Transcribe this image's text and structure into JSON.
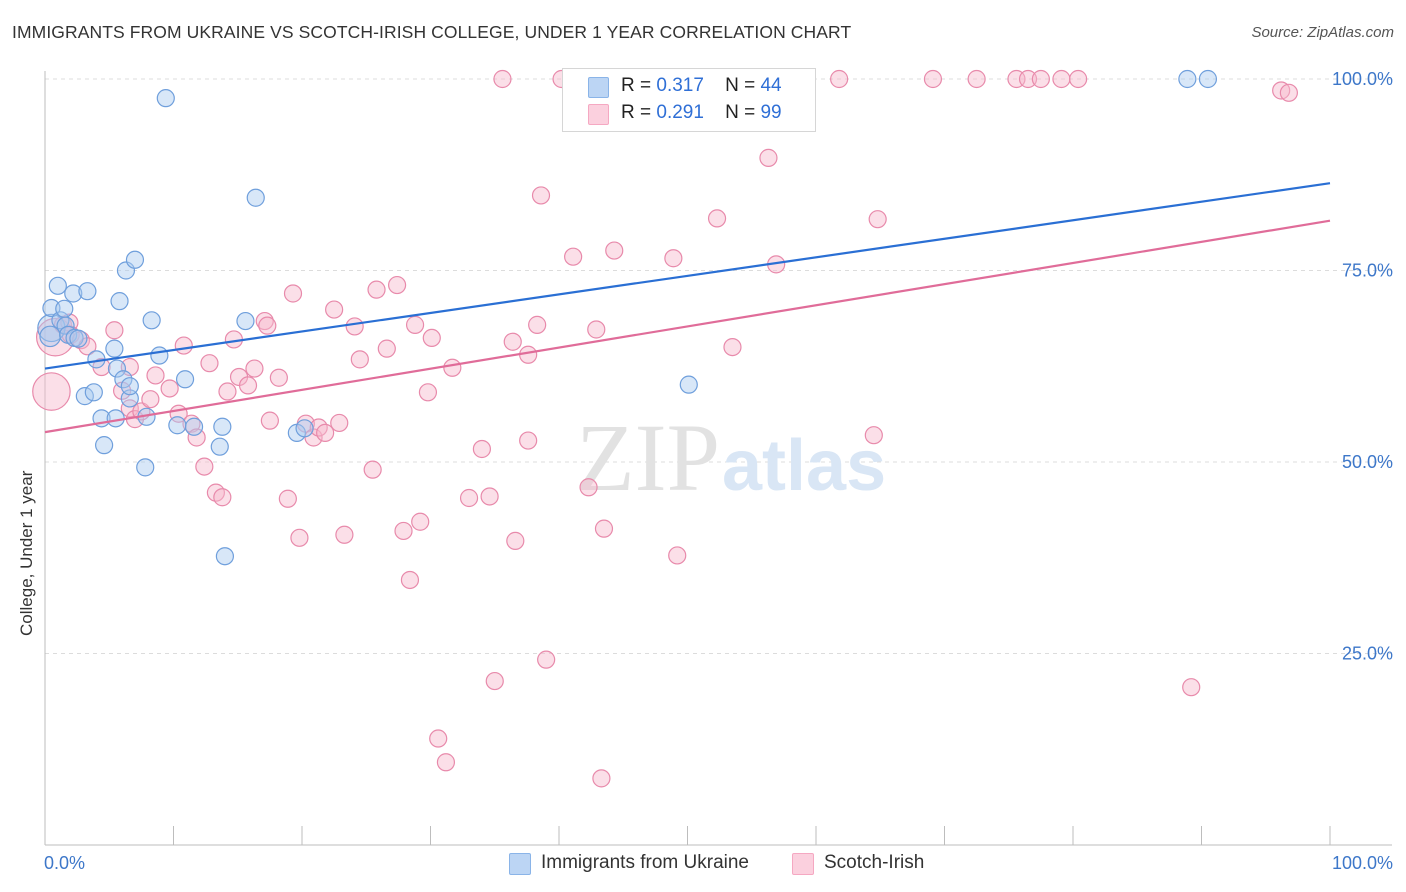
{
  "title": "IMMIGRANTS FROM UKRAINE VS SCOTCH-IRISH COLLEGE, UNDER 1 YEAR CORRELATION CHART",
  "source": "Source: ZipAtlas.com",
  "watermark": {
    "zip": "ZIP",
    "atlas": "atlas"
  },
  "legend_stats": [
    {
      "r_label": "R =",
      "r_value": "0.317",
      "n_label": "N =",
      "n_value": "44"
    },
    {
      "r_label": "R =",
      "r_value": "0.291",
      "n_label": "N =",
      "n_value": "99"
    }
  ],
  "chart_data": {
    "type": "scatter",
    "title": "IMMIGRANTS FROM UKRAINE VS SCOTCH-IRISH COLLEGE, UNDER 1 YEAR CORRELATION CHART",
    "xlabel": "",
    "ylabel": "College, Under 1 year",
    "xlim": [
      0,
      100
    ],
    "ylim": [
      0,
      102
    ],
    "x_tick_labels": [
      "0.0%",
      "100.0%"
    ],
    "y_ticks": [
      25,
      50,
      75,
      100
    ],
    "y_tick_labels": [
      "25.0%",
      "50.0%",
      "75.0%",
      "100.0%"
    ],
    "grid": true,
    "legend_position": "bottom",
    "series": [
      {
        "name": "Immigrants from Ukraine",
        "color": "#8ab4e8",
        "line_color": "#2a6fd4",
        "r": 0.317,
        "n": 44,
        "trend": {
          "x0": 0,
          "y0": 62.2,
          "x1": 100,
          "y1": 86.4
        },
        "points": [
          [
            0.5,
            67.5,
            1.6
          ],
          [
            0.4,
            66.4,
            1.2
          ],
          [
            0.5,
            70.1,
            1
          ],
          [
            1,
            73,
            1
          ],
          [
            1.2,
            68.5,
            1
          ],
          [
            1.5,
            70,
            1
          ],
          [
            1.6,
            67.8,
            1
          ],
          [
            1.8,
            66.6,
            1
          ],
          [
            2.2,
            72,
            1
          ],
          [
            2.3,
            66.2,
            1
          ],
          [
            2.6,
            66.1,
            1
          ],
          [
            3.3,
            72.3,
            1
          ],
          [
            3.1,
            58.6,
            1
          ],
          [
            3.8,
            59.1,
            1
          ],
          [
            4,
            63.4,
            1
          ],
          [
            4.4,
            55.7,
            1
          ],
          [
            4.6,
            52.2,
            1
          ],
          [
            5.5,
            55.7,
            1
          ],
          [
            5.4,
            64.8,
            1
          ],
          [
            5.6,
            62.2,
            1
          ],
          [
            5.8,
            71,
            1
          ],
          [
            6.1,
            60.8,
            1
          ],
          [
            6.3,
            75,
            1
          ],
          [
            6.6,
            58.3,
            1
          ],
          [
            6.6,
            59.9,
            1
          ],
          [
            7,
            76.4,
            1
          ],
          [
            7.8,
            49.3,
            1
          ],
          [
            7.9,
            55.9,
            1
          ],
          [
            8.3,
            68.5,
            1
          ],
          [
            8.9,
            63.9,
            1
          ],
          [
            9.4,
            97.5,
            1
          ],
          [
            10.3,
            54.8,
            1
          ],
          [
            10.9,
            60.8,
            1
          ],
          [
            11.6,
            54.6,
            1
          ],
          [
            13.6,
            52,
            1
          ],
          [
            13.8,
            54.6,
            1
          ],
          [
            14,
            37.7,
            1
          ],
          [
            15.6,
            68.4,
            1
          ],
          [
            16.4,
            84.5,
            1
          ],
          [
            19.6,
            53.8,
            1
          ],
          [
            20.2,
            54.4,
            1
          ],
          [
            50.1,
            60.1,
            1
          ],
          [
            88.9,
            100,
            1
          ],
          [
            90.5,
            100,
            1
          ]
        ]
      },
      {
        "name": "Scotch-Irish",
        "color": "#f5a8c2",
        "line_color": "#e06c99",
        "r": 0.291,
        "n": 99,
        "trend": {
          "x0": 0,
          "y0": 53.9,
          "x1": 100,
          "y1": 81.5
        },
        "points": [
          [
            0.5,
            59.2,
            2.2
          ],
          [
            0.8,
            66.3,
            2.2
          ],
          [
            1.4,
            67.9,
            1
          ],
          [
            1.9,
            68.2,
            1
          ],
          [
            2,
            66.6,
            1
          ],
          [
            2.8,
            65.9,
            1
          ],
          [
            3.3,
            65.1,
            1
          ],
          [
            4.4,
            62.4,
            1
          ],
          [
            5.4,
            67.2,
            1
          ],
          [
            6,
            59.3,
            1
          ],
          [
            6.6,
            62.4,
            1
          ],
          [
            6.6,
            57,
            1
          ],
          [
            7,
            55.6,
            1
          ],
          [
            7.5,
            56.6,
            1
          ],
          [
            8.2,
            58.2,
            1
          ],
          [
            8.6,
            61.3,
            1
          ],
          [
            9.7,
            59.6,
            1
          ],
          [
            10.4,
            56.3,
            1
          ],
          [
            10.8,
            65.2,
            1
          ],
          [
            11.4,
            55,
            1
          ],
          [
            11.8,
            53.2,
            1
          ],
          [
            12.4,
            49.4,
            1
          ],
          [
            12.8,
            62.9,
            1
          ],
          [
            13.3,
            46,
            1
          ],
          [
            13.8,
            45.4,
            1
          ],
          [
            14.2,
            59.2,
            1
          ],
          [
            14.7,
            66,
            1
          ],
          [
            15.1,
            61.1,
            1
          ],
          [
            15.8,
            60,
            1
          ],
          [
            16.3,
            62.2,
            1
          ],
          [
            17.1,
            68.4,
            1
          ],
          [
            17.3,
            67.8,
            1
          ],
          [
            17.5,
            55.4,
            1
          ],
          [
            18.2,
            61,
            1
          ],
          [
            18.9,
            45.2,
            1
          ],
          [
            19.3,
            72,
            1
          ],
          [
            19.8,
            40.1,
            1
          ],
          [
            20.3,
            55,
            1
          ],
          [
            20.9,
            53.2,
            1
          ],
          [
            21.3,
            54.5,
            1
          ],
          [
            21.8,
            53.8,
            1
          ],
          [
            22.5,
            69.9,
            1
          ],
          [
            22.9,
            55.1,
            1
          ],
          [
            23.3,
            40.5,
            1
          ],
          [
            24.1,
            67.7,
            1
          ],
          [
            24.5,
            63.4,
            1
          ],
          [
            25.5,
            49,
            1
          ],
          [
            25.8,
            72.5,
            1
          ],
          [
            26.6,
            64.8,
            1
          ],
          [
            27.4,
            73.1,
            1
          ],
          [
            27.9,
            41,
            1
          ],
          [
            28.4,
            34.6,
            1
          ],
          [
            28.8,
            67.9,
            1
          ],
          [
            29.2,
            42.2,
            1
          ],
          [
            29.8,
            59.1,
            1
          ],
          [
            30.1,
            66.2,
            1
          ],
          [
            30.6,
            13.9,
            1
          ],
          [
            31.2,
            10.8,
            1
          ],
          [
            31.7,
            62.3,
            1
          ],
          [
            33,
            45.3,
            1
          ],
          [
            34,
            51.7,
            1
          ],
          [
            34.6,
            45.5,
            1
          ],
          [
            35,
            21.4,
            1
          ],
          [
            35.6,
            100,
            1
          ],
          [
            36.4,
            65.7,
            1
          ],
          [
            36.6,
            39.7,
            1
          ],
          [
            37.6,
            52.8,
            1
          ],
          [
            37.6,
            64,
            1
          ],
          [
            38.3,
            67.9,
            1
          ],
          [
            38.6,
            84.8,
            1
          ],
          [
            39,
            24.2,
            1
          ],
          [
            40.2,
            100,
            1
          ],
          [
            41.1,
            76.8,
            1
          ],
          [
            42.3,
            46.7,
            1
          ],
          [
            42.9,
            67.3,
            1
          ],
          [
            43.3,
            8.7,
            1
          ],
          [
            43.5,
            41.3,
            1
          ],
          [
            44.3,
            77.6,
            1
          ],
          [
            47.8,
            100,
            1
          ],
          [
            48.9,
            76.6,
            1
          ],
          [
            49.2,
            37.8,
            1
          ],
          [
            50.7,
            100,
            1
          ],
          [
            52.3,
            81.8,
            1
          ],
          [
            53.5,
            65,
            1
          ],
          [
            56.3,
            89.7,
            1
          ],
          [
            56.9,
            75.8,
            1
          ],
          [
            61.8,
            100,
            1
          ],
          [
            64.5,
            53.5,
            1
          ],
          [
            64.8,
            81.7,
            1
          ],
          [
            69.1,
            100,
            1
          ],
          [
            72.5,
            100,
            1
          ],
          [
            75.6,
            100,
            1
          ],
          [
            76.5,
            100,
            1
          ],
          [
            77.5,
            100,
            1
          ],
          [
            79.1,
            100,
            1
          ],
          [
            80.4,
            100,
            1
          ],
          [
            89.2,
            20.6,
            1
          ],
          [
            96.2,
            98.5,
            1
          ],
          [
            96.8,
            98.2,
            1
          ]
        ]
      }
    ]
  },
  "legend_bottom": [
    "Immigrants from Ukraine",
    "Scotch-Irish"
  ]
}
